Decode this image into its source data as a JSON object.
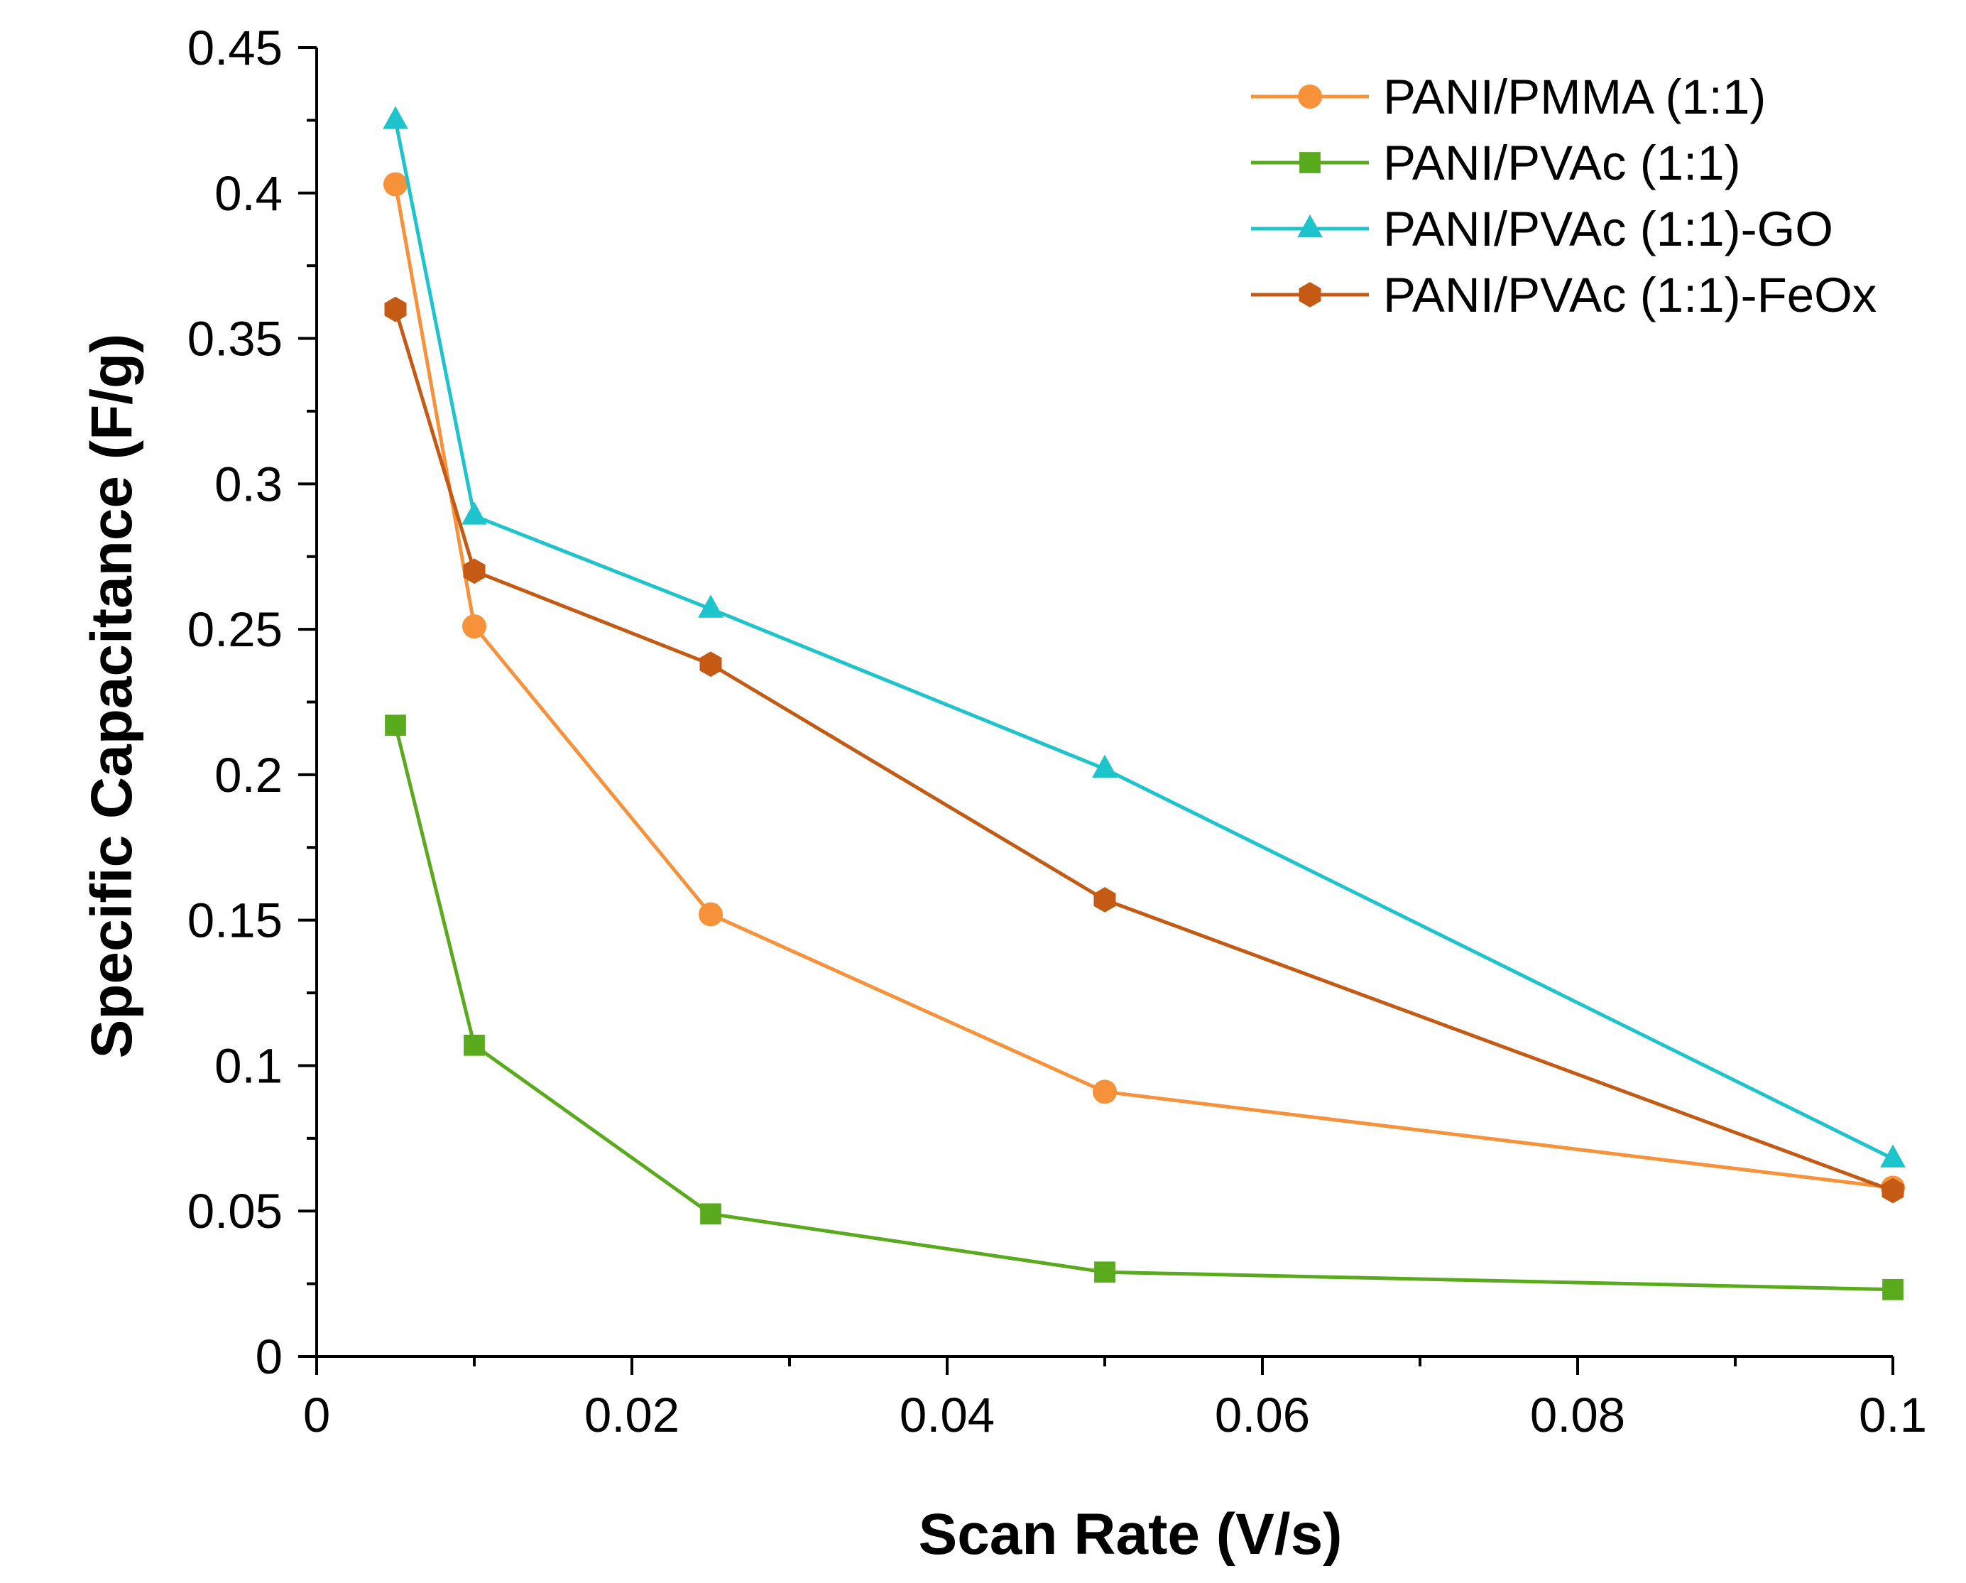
{
  "chart_data": {
    "type": "line",
    "title": "",
    "xlabel": "Scan Rate (V/s)",
    "ylabel": "Specific Capacitance (F/g)",
    "xlim": [
      0,
      0.1
    ],
    "ylim": [
      0,
      0.45
    ],
    "x_ticks": [
      0,
      0.02,
      0.04,
      0.06,
      0.08,
      0.1
    ],
    "x_tick_labels": [
      "0",
      "0.02",
      "0.04",
      "0.06",
      "0.08",
      "0.1"
    ],
    "y_ticks": [
      0,
      0.05,
      0.1,
      0.15,
      0.2,
      0.25,
      0.3,
      0.35,
      0.4,
      0.45
    ],
    "y_tick_labels": [
      "0",
      "0.05",
      "0.1",
      "0.15",
      "0.2",
      "0.25",
      "0.3",
      "0.35",
      "0.4",
      "0.45"
    ],
    "grid": false,
    "legend_position": "top-right",
    "x": [
      0.005,
      0.01,
      0.025,
      0.05,
      0.1
    ],
    "series": [
      {
        "name": "PANI/PMMA (1:1)",
        "color": "#F7913A",
        "marker": "circle",
        "values": [
          0.403,
          0.251,
          0.152,
          0.091,
          0.058
        ]
      },
      {
        "name": "PANI/PVAc (1:1)",
        "color": "#5AAA1E",
        "marker": "square",
        "values": [
          0.217,
          0.107,
          0.049,
          0.029,
          0.023
        ]
      },
      {
        "name": "PANI/PVAc (1:1)-GO",
        "color": "#1EC4CC",
        "marker": "triangle",
        "values": [
          0.425,
          0.289,
          0.257,
          0.202,
          0.068
        ]
      },
      {
        "name": "PANI/PVAc (1:1)-FeOx",
        "color": "#C45A14",
        "marker": "hexagon",
        "values": [
          0.36,
          0.27,
          0.238,
          0.157,
          0.057
        ]
      }
    ]
  }
}
